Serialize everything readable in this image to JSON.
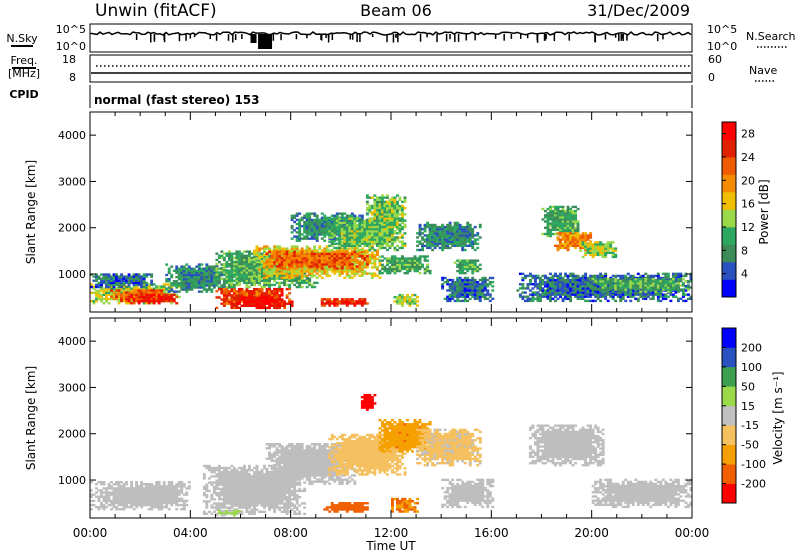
{
  "header": {
    "station": "Unwin (fitACF)",
    "beam": "Beam 06",
    "date": "31/Dec/2009"
  },
  "noise_panel": {
    "left_label": "N.Sky",
    "left_ticks": [
      "10^5",
      "10^0"
    ],
    "right_label": "N.Search",
    "right_ticks": [
      "10^5",
      "10^0"
    ]
  },
  "freq_panel": {
    "left_label_line1": "Freq.",
    "left_label_line2": "[MHz]",
    "left_ticks": [
      "18",
      "8"
    ],
    "right_label": "Nave",
    "right_ticks": [
      "60",
      "0"
    ]
  },
  "cpid_panel": {
    "label": "CPID",
    "text": "normal (fast stereo) 153"
  },
  "colors": {
    "power_scale": [
      "#0000ff",
      "#2a52be",
      "#3c8c5a",
      "#2ea860",
      "#9ad94a",
      "#f0c000",
      "#f58c00",
      "#f05a00",
      "#e02000",
      "#ff0000"
    ],
    "velocity_scale": [
      "#ff0000",
      "#f06000",
      "#f5a000",
      "#f5c060",
      "#c0c0c0",
      "#9ad94a",
      "#3ca050",
      "#2a52be",
      "#0000ff"
    ],
    "ground_scatter": "#bebebe"
  },
  "chart_data": [
    {
      "type": "heatmap",
      "panel": "power",
      "ylabel": "Slant Range [km]",
      "ylim": [
        180,
        4500
      ],
      "yticks": [
        "1000",
        "2000",
        "3000",
        "4000"
      ],
      "xlim_hours": [
        0,
        24
      ],
      "colorbar": {
        "label": "Power [dB]",
        "ticks": [
          "4",
          "8",
          "12",
          "16",
          "20",
          "24",
          "28"
        ],
        "range": [
          0,
          30
        ]
      },
      "regions": [
        {
          "t0": 0.0,
          "t1": 3.6,
          "r0": 350,
          "r1": 800,
          "value": 14
        },
        {
          "t0": 0.8,
          "t1": 3.0,
          "r0": 400,
          "r1": 650,
          "value": 22
        },
        {
          "t0": 1.5,
          "t1": 3.5,
          "r0": 350,
          "r1": 550,
          "value": 26
        },
        {
          "t0": 0.0,
          "t1": 2.5,
          "r0": 700,
          "r1": 1000,
          "value": 6
        },
        {
          "t0": 3.0,
          "t1": 5.5,
          "r0": 600,
          "r1": 1200,
          "value": 8
        },
        {
          "t0": 5.0,
          "t1": 8.0,
          "r0": 250,
          "r1": 700,
          "value": 24
        },
        {
          "t0": 5.8,
          "t1": 7.5,
          "r0": 250,
          "r1": 500,
          "value": 28
        },
        {
          "t0": 5.0,
          "t1": 9.0,
          "r0": 700,
          "r1": 1500,
          "value": 10
        },
        {
          "t0": 6.5,
          "t1": 11.5,
          "r0": 900,
          "r1": 1600,
          "value": 16
        },
        {
          "t0": 7.0,
          "t1": 11.0,
          "r0": 1100,
          "r1": 1500,
          "value": 22
        },
        {
          "t0": 8.0,
          "t1": 11.0,
          "r0": 1700,
          "r1": 2300,
          "value": 8
        },
        {
          "t0": 9.5,
          "t1": 12.5,
          "r0": 1500,
          "r1": 2200,
          "value": 12
        },
        {
          "t0": 11.0,
          "t1": 12.5,
          "r0": 2000,
          "r1": 2700,
          "value": 12
        },
        {
          "t0": 11.5,
          "t1": 13.5,
          "r0": 1000,
          "r1": 1400,
          "value": 10
        },
        {
          "t0": 9.2,
          "t1": 11.0,
          "r0": 300,
          "r1": 450,
          "value": 26
        },
        {
          "t0": 12.0,
          "t1": 13.0,
          "r0": 300,
          "r1": 550,
          "value": 14
        },
        {
          "t0": 13.0,
          "t1": 15.5,
          "r0": 1500,
          "r1": 2100,
          "value": 8
        },
        {
          "t0": 14.5,
          "t1": 15.5,
          "r0": 1000,
          "r1": 1300,
          "value": 10
        },
        {
          "t0": 14.0,
          "t1": 16.0,
          "r0": 400,
          "r1": 900,
          "value": 6
        },
        {
          "t0": 18.0,
          "t1": 19.5,
          "r0": 1800,
          "r1": 2450,
          "value": 10
        },
        {
          "t0": 18.5,
          "t1": 20.0,
          "r0": 1500,
          "r1": 1900,
          "value": 20
        },
        {
          "t0": 19.5,
          "t1": 21.0,
          "r0": 1350,
          "r1": 1700,
          "value": 14
        },
        {
          "t0": 17.0,
          "t1": 24.0,
          "r0": 400,
          "r1": 1000,
          "value": 6
        },
        {
          "t0": 20.0,
          "t1": 24.0,
          "r0": 600,
          "r1": 900,
          "value": 10
        }
      ]
    },
    {
      "type": "heatmap",
      "panel": "velocity",
      "ylabel": "Slant Range [km]",
      "ylim": [
        180,
        4500
      ],
      "yticks": [
        "1000",
        "2000",
        "3000",
        "4000"
      ],
      "xlim_hours": [
        0,
        24
      ],
      "xticks": [
        "00:00",
        "04:00",
        "08:00",
        "12:00",
        "16:00",
        "20:00",
        "00:00"
      ],
      "xlabel": "Time UT",
      "colorbar": {
        "label": "Velocity [m s⁻¹]",
        "ticks": [
          "200",
          "100",
          "50",
          "15",
          "-15",
          "-50",
          "-100",
          "-200"
        ],
        "range": [
          -250,
          250
        ]
      },
      "regions": [
        {
          "t0": 0.0,
          "t1": 4.0,
          "r0": 350,
          "r1": 950,
          "value": 0,
          "gs": true
        },
        {
          "t0": 4.5,
          "t1": 8.5,
          "r0": 250,
          "r1": 1300,
          "value": 0,
          "gs": true
        },
        {
          "t0": 7.0,
          "t1": 10.5,
          "r0": 900,
          "r1": 1800,
          "value": 0,
          "gs": true
        },
        {
          "t0": 9.5,
          "t1": 12.5,
          "r0": 1100,
          "r1": 2000,
          "value": -60
        },
        {
          "t0": 11.5,
          "t1": 13.5,
          "r0": 1600,
          "r1": 2300,
          "value": -120
        },
        {
          "t0": 10.8,
          "t1": 11.3,
          "r0": 2500,
          "r1": 2850,
          "value": -220
        },
        {
          "t0": 9.3,
          "t1": 11.0,
          "r0": 300,
          "r1": 500,
          "value": -160
        },
        {
          "t0": 12.0,
          "t1": 13.0,
          "r0": 300,
          "r1": 600,
          "value": -140
        },
        {
          "t0": 13.0,
          "t1": 15.5,
          "r0": 1300,
          "r1": 2100,
          "value": -40
        },
        {
          "t0": 14.0,
          "t1": 16.0,
          "r0": 400,
          "r1": 1000,
          "value": 0,
          "gs": true
        },
        {
          "t0": 17.5,
          "t1": 20.5,
          "r0": 1300,
          "r1": 2200,
          "value": 0,
          "gs": true
        },
        {
          "t0": 20.0,
          "t1": 24.0,
          "r0": 400,
          "r1": 1000,
          "value": 0,
          "gs": true
        },
        {
          "t0": 5.0,
          "t1": 6.0,
          "r0": 220,
          "r1": 350,
          "value": 30
        }
      ]
    }
  ]
}
